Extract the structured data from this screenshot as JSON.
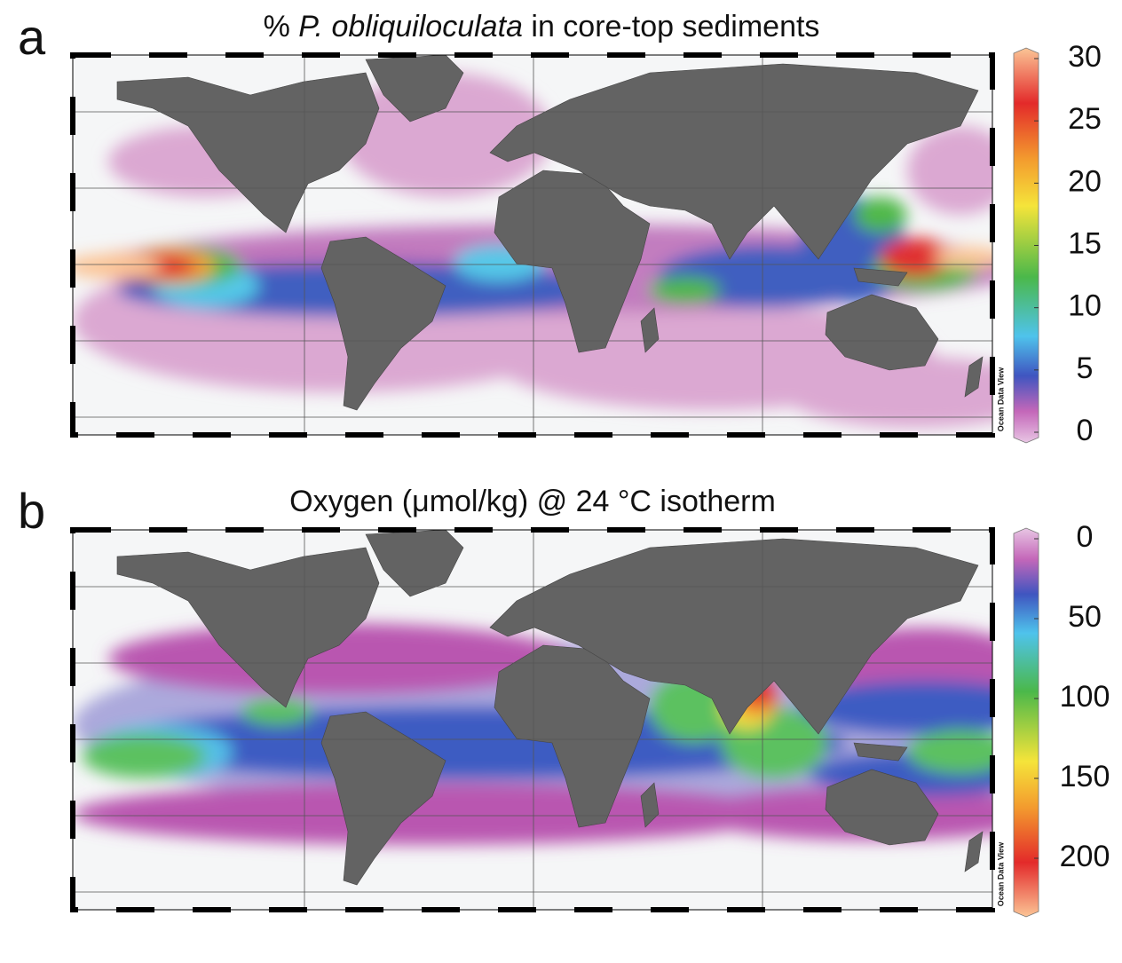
{
  "panels": [
    {
      "label": "a",
      "title": [
        {
          "text": "% "
        },
        {
          "text": "P. obliquiloculata",
          "style": "italic"
        },
        {
          "text": " in core-top sediments"
        }
      ],
      "colorbar": {
        "lim": [
          0,
          30
        ],
        "ticks": [
          0,
          5,
          10,
          15,
          20,
          25,
          30
        ],
        "reversed": false
      },
      "credit": "Ocean Data View"
    },
    {
      "label": "b",
      "title": [
        {
          "text": "Oxygen (μmol/kg) @ 24 °C isotherm"
        }
      ],
      "colorbar": {
        "lim": [
          0,
          230
        ],
        "ticks": [
          0,
          50,
          100,
          150,
          200
        ],
        "reversed": true
      },
      "credit": "Ocean Data View"
    }
  ]
}
